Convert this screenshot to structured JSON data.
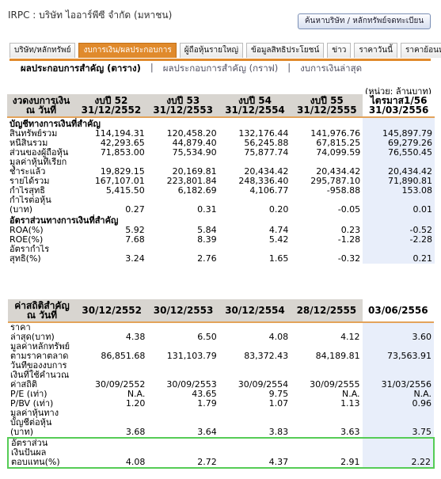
{
  "header": {
    "title": "IRPC : บริษัท ไออาร์พีซี จำกัด (มหาชน)",
    "search_button": "ค้นหาบริษัท / หลักทรัพย์จดทะเบียน"
  },
  "tabs": [
    "บริษัท/หลักทรัพย์",
    "งบการเงิน/ผลประกอบการ",
    "ผู้ถือหุ้นรายใหญ่",
    "ข้อมูลสิทธิประโยชน์",
    "ข่าว",
    "ราคาวันนี้",
    "ราคาย้อนหลัง"
  ],
  "subnav": [
    "ผลประกอบการสำคัญ (ตาราง)",
    "|",
    "ผลประกอบการสำคัญ (กราฟ)",
    "|",
    "งบการเงินล่าสุด"
  ],
  "unit": "(หน่วย: ล้านบาท)",
  "financials": {
    "header": [
      "งวดงบการเงิน ณ วันที่",
      "งบปี 52 31/12/2552",
      "งบปี 53 31/12/2553",
      "งบปี 54 31/12/2554",
      "งบปี 55 31/12/2555",
      "ไตรมาส1/56 31/03/2556"
    ],
    "sections": [
      {
        "title": "บัญชีทางการเงินที่สำคัญ",
        "rows": [
          [
            "สินทรัพย์รวม",
            "114,194.31",
            "120,458.20",
            "132,176.44",
            "141,976.76",
            "145,897.79"
          ],
          [
            "หนี้สินรวม",
            "42,293.65",
            "44,879.40",
            "56,245.88",
            "67,815.25",
            "69,279.26"
          ],
          [
            "ส่วนของผู้ถือหุ้น",
            "71,853.00",
            "75,534.90",
            "75,877.74",
            "74,099.59",
            "76,550.45"
          ],
          [
            "มูลค่าหุ้นที่เรียกชำระแล้ว",
            "19,829.15",
            "20,169.81",
            "20,434.42",
            "20,434.42",
            "20,434.42"
          ],
          [
            "รายได้รวม",
            "167,107.01",
            "223,801.84",
            "248,336.40",
            "295,787.10",
            "71,890.81"
          ],
          [
            "กำไรสุทธิ",
            "5,415.50",
            "6,182.69",
            "4,106.77",
            "-958.88",
            "153.08"
          ],
          [
            "กำไรต่อหุ้น (บาท)",
            "0.27",
            "0.31",
            "0.20",
            "-0.05",
            "0.01"
          ]
        ]
      },
      {
        "title": "อัตราส่วนทางการเงินที่สำคัญ",
        "rows": [
          [
            "ROA(%)",
            "5.92",
            "5.84",
            "4.74",
            "0.23",
            "-0.52"
          ],
          [
            "ROE(%)",
            "7.68",
            "8.39",
            "5.42",
            "-1.28",
            "-2.28"
          ],
          [
            "อัตรากำไรสุทธิ(%)",
            "3.24",
            "2.76",
            "1.65",
            "-0.32",
            "0.21"
          ]
        ]
      }
    ]
  },
  "statistics": {
    "header": [
      "ค่าสถิติสำคัญ ณ วันที่",
      "30/12/2552",
      "30/12/2553",
      "30/12/2554",
      "28/12/2555",
      "03/06/2556"
    ],
    "rows": [
      [
        "ราคาล่าสุด(บาท)",
        "4.38",
        "6.50",
        "4.08",
        "4.12",
        "3.60"
      ],
      [
        "มูลค่าหลักทรัพย์ตามราคาตลาด",
        "86,851.68",
        "131,103.79",
        "83,372.43",
        "84,189.81",
        "73,563.91"
      ],
      [
        "วันที่ของงบการเงินที่ใช้คำนวณค่าสถิติ",
        "30/09/2552",
        "30/09/2553",
        "30/09/2554",
        "30/09/2555",
        "31/03/2556"
      ],
      [
        "P/E (เท่า)",
        "N.A.",
        "43.65",
        "9.75",
        "N.A.",
        "N.A."
      ],
      [
        "P/BV (เท่า)",
        "1.20",
        "1.79",
        "1.07",
        "1.13",
        "0.96"
      ],
      [
        "มูลค่าหุ้นทางบัญชีต่อหุ้น (บาท)",
        "3.68",
        "3.64",
        "3.83",
        "3.63",
        "3.75"
      ],
      [
        "อัตราส่วนเงินปันผลตอบแทน(%)",
        "4.08",
        "2.72",
        "4.37",
        "2.91",
        "2.22"
      ]
    ]
  }
}
